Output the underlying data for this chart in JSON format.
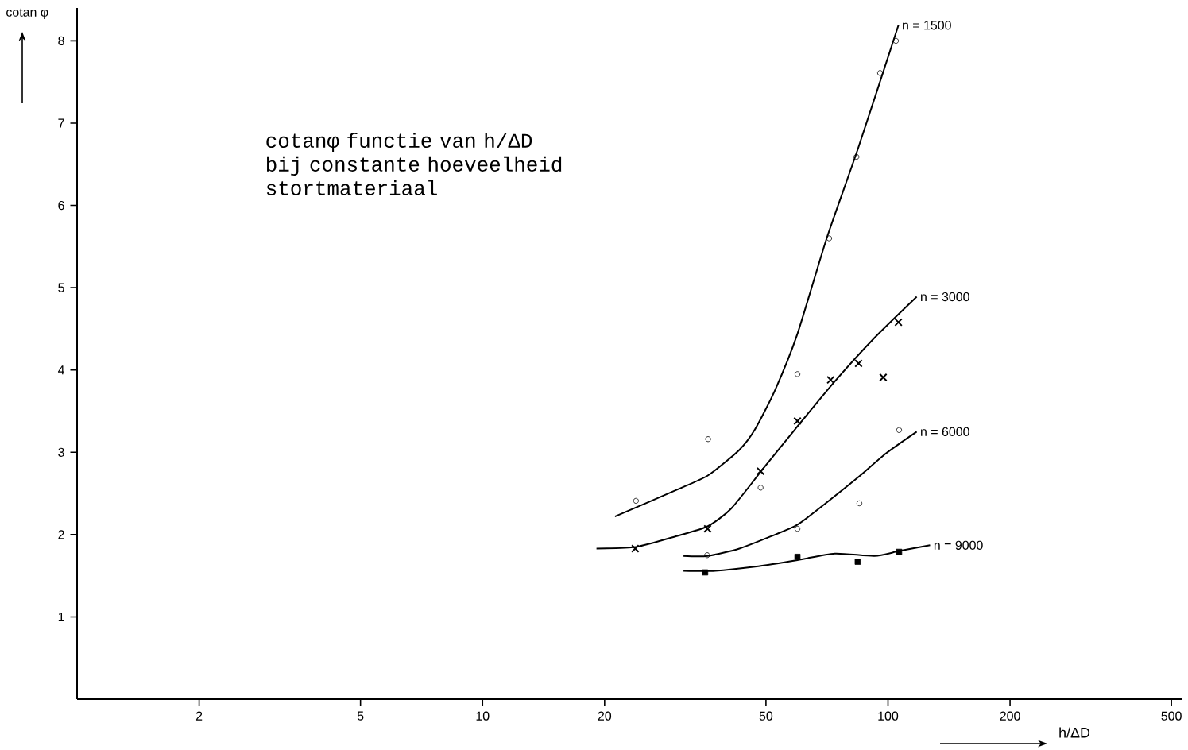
{
  "chart_data": {
    "type": "scatter",
    "title": "cotanφ functie van h/ΔD bij constante hoeveelheid stortmateriaal",
    "xlabel": "h/ΔD",
    "ylabel": "cotan φ",
    "log": "x",
    "xlim": [
      1,
      530
    ],
    "ylim": [
      0,
      8.4
    ],
    "xticks": [
      2,
      5,
      10,
      20,
      50,
      100,
      200,
      500
    ],
    "yticks": [
      1,
      2,
      3,
      4,
      5,
      6,
      7,
      8
    ],
    "series": [
      {
        "name": "n = 1500",
        "type": "line",
        "color": "#000000",
        "marker": "none",
        "x": [
          21.2,
          30.0,
          36.0,
          43.0,
          47.0,
          52.7,
          59.8,
          70.6,
          84.6,
          106.1
        ],
        "values": [
          2.22,
          2.54,
          2.72,
          3.03,
          3.28,
          3.76,
          4.44,
          5.6,
          6.71,
          8.19
        ]
      },
      {
        "color": "#000000",
        "marker": "circle",
        "x": [
          23.9,
          36.0,
          48.5,
          59.8,
          71.6,
          83.6,
          95.6,
          104.6
        ],
        "values": [
          2.41,
          3.16,
          2.57,
          3.95,
          5.6,
          6.59,
          7.61,
          8.0
        ]
      },
      {
        "name": "n = 3000",
        "type": "line",
        "color": "#000000",
        "marker": "none",
        "x": [
          19.1,
          23.9,
          30.0,
          35.9,
          41.1,
          49.2,
          59.0,
          73.9,
          92.6,
          117.7
        ],
        "values": [
          1.83,
          1.85,
          1.98,
          2.1,
          2.32,
          2.8,
          3.28,
          3.86,
          4.39,
          4.89
        ]
      },
      {
        "color": "#000000",
        "marker": "cross",
        "x": [
          23.8,
          35.9,
          48.5,
          59.8,
          72.2,
          84.6,
          97.3,
          106.1
        ],
        "values": [
          1.83,
          2.07,
          2.77,
          3.38,
          3.88,
          4.08,
          3.91,
          4.58
        ]
      },
      {
        "name": "n = 6000",
        "type": "line",
        "color": "#000000",
        "marker": "none",
        "x": [
          31.3,
          35.9,
          43.0,
          51.5,
          59.8,
          70.6,
          84.6,
          99.1,
          117.7
        ],
        "values": [
          1.74,
          1.74,
          1.83,
          1.98,
          2.12,
          2.39,
          2.7,
          2.99,
          3.25
        ]
      },
      {
        "color": "#000000",
        "marker": "circle",
        "x": [
          35.8,
          59.8,
          85.0,
          106.5
        ],
        "values": [
          1.75,
          2.07,
          2.38,
          3.27
        ]
      },
      {
        "name": "n = 9000",
        "type": "line",
        "color": "#000000",
        "marker": "none",
        "x": [
          31.3,
          37.5,
          47.0,
          59.8,
          73.9,
          92.6,
          106.5,
          127.0
        ],
        "values": [
          1.56,
          1.56,
          1.61,
          1.69,
          1.77,
          1.74,
          1.8,
          1.87
        ]
      },
      {
        "color": "#000000",
        "marker": "square",
        "x": [
          35.4,
          59.8,
          84.2,
          106.5
        ],
        "values": [
          1.54,
          1.73,
          1.67,
          1.79
        ]
      }
    ]
  }
}
